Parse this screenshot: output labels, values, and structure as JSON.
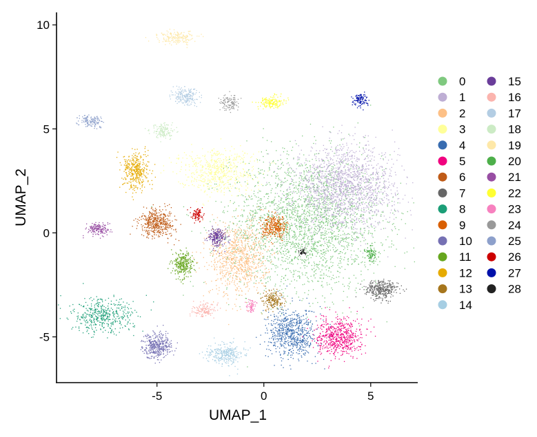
{
  "chart_data": {
    "type": "scatter",
    "title": "",
    "xlabel": "UMAP_1",
    "ylabel": "UMAP_2",
    "xlim": [
      -9.7,
      7.2
    ],
    "ylim": [
      -7.2,
      10.6
    ],
    "xticks": [
      -5,
      0,
      5
    ],
    "xtick_labels": [
      "-5",
      "0",
      "5"
    ],
    "yticks": [
      -5,
      0,
      5,
      10
    ],
    "ytick_labels": [
      "-5",
      "0",
      "5",
      "10"
    ],
    "grid": false,
    "legend_position": "right",
    "series": [
      {
        "name": "0",
        "color": "#7fc97f",
        "cx": 2.0,
        "cy": 0.5,
        "sx": 2.4,
        "sy": 2.2,
        "n": 2600
      },
      {
        "name": "1",
        "color": "#beaed4",
        "cx": 3.8,
        "cy": 2.2,
        "sx": 1.6,
        "sy": 1.3,
        "n": 1700
      },
      {
        "name": "2",
        "color": "#fdc086",
        "cx": -1.2,
        "cy": -1.2,
        "sx": 0.9,
        "sy": 1.2,
        "n": 900
      },
      {
        "name": "3",
        "color": "#ffff99",
        "cx": -2.2,
        "cy": 3.0,
        "sx": 1.2,
        "sy": 0.7,
        "n": 600
      },
      {
        "name": "4",
        "color": "#386cb0",
        "cx": 1.3,
        "cy": -4.8,
        "sx": 0.75,
        "sy": 0.8,
        "n": 700
      },
      {
        "name": "5",
        "color": "#f0027f",
        "cx": 3.5,
        "cy": -5.0,
        "sx": 0.7,
        "sy": 0.6,
        "n": 600
      },
      {
        "name": "6",
        "color": "#bf5b17",
        "cx": -5.0,
        "cy": 0.5,
        "sx": 0.55,
        "sy": 0.45,
        "n": 450
      },
      {
        "name": "7",
        "color": "#666666",
        "cx": 5.5,
        "cy": -2.7,
        "sx": 0.5,
        "sy": 0.3,
        "n": 350
      },
      {
        "name": "8",
        "color": "#1b9e77",
        "cx": -7.6,
        "cy": -4.0,
        "sx": 1.0,
        "sy": 0.55,
        "n": 450
      },
      {
        "name": "9",
        "color": "#d95f02",
        "cx": 0.5,
        "cy": 0.3,
        "sx": 0.4,
        "sy": 0.35,
        "n": 300
      },
      {
        "name": "10",
        "color": "#7570b3",
        "cx": -5.0,
        "cy": -5.4,
        "sx": 0.45,
        "sy": 0.4,
        "n": 380
      },
      {
        "name": "11",
        "color": "#66a61e",
        "cx": -3.8,
        "cy": -1.5,
        "sx": 0.3,
        "sy": 0.4,
        "n": 280
      },
      {
        "name": "12",
        "color": "#e6ab02",
        "cx": -6.0,
        "cy": 3.0,
        "sx": 0.4,
        "sy": 0.6,
        "n": 380
      },
      {
        "name": "13",
        "color": "#a6761d",
        "cx": 0.4,
        "cy": -3.2,
        "sx": 0.3,
        "sy": 0.3,
        "n": 180
      },
      {
        "name": "14",
        "color": "#a6cee3",
        "cx": -1.8,
        "cy": -5.8,
        "sx": 0.55,
        "sy": 0.35,
        "n": 280
      },
      {
        "name": "15",
        "color": "#6a3d9a",
        "cx": -2.2,
        "cy": -0.2,
        "sx": 0.3,
        "sy": 0.3,
        "n": 200
      },
      {
        "name": "16",
        "color": "#fbb4ae",
        "cx": -2.8,
        "cy": -3.7,
        "sx": 0.35,
        "sy": 0.2,
        "n": 130
      },
      {
        "name": "17",
        "color": "#b3cde3",
        "cx": -3.7,
        "cy": 6.6,
        "sx": 0.4,
        "sy": 0.3,
        "n": 200
      },
      {
        "name": "18",
        "color": "#ccebc5",
        "cx": -4.7,
        "cy": 4.9,
        "sx": 0.4,
        "sy": 0.25,
        "n": 140
      },
      {
        "name": "19",
        "color": "#fee8a8",
        "cx": -4.1,
        "cy": 9.4,
        "sx": 0.55,
        "sy": 0.2,
        "n": 180
      },
      {
        "name": "20",
        "color": "#4daf4a",
        "cx": 5.0,
        "cy": -1.0,
        "sx": 0.18,
        "sy": 0.25,
        "n": 90
      },
      {
        "name": "21",
        "color": "#984ea3",
        "cx": -7.8,
        "cy": 0.2,
        "sx": 0.35,
        "sy": 0.2,
        "n": 160
      },
      {
        "name": "22",
        "color": "#ffff33",
        "cx": 0.3,
        "cy": 6.3,
        "sx": 0.4,
        "sy": 0.2,
        "n": 150
      },
      {
        "name": "23",
        "color": "#f781bf",
        "cx": -0.6,
        "cy": -3.5,
        "sx": 0.15,
        "sy": 0.2,
        "n": 70
      },
      {
        "name": "24",
        "color": "#999999",
        "cx": -1.6,
        "cy": 6.3,
        "sx": 0.3,
        "sy": 0.25,
        "n": 110
      },
      {
        "name": "25",
        "color": "#8da0cb",
        "cx": -8.1,
        "cy": 5.4,
        "sx": 0.35,
        "sy": 0.2,
        "n": 130
      },
      {
        "name": "26",
        "color": "#cc0000",
        "cx": -3.1,
        "cy": 0.9,
        "sx": 0.18,
        "sy": 0.22,
        "n": 90
      },
      {
        "name": "27",
        "color": "#0011aa",
        "cx": 4.5,
        "cy": 6.4,
        "sx": 0.22,
        "sy": 0.2,
        "n": 110
      },
      {
        "name": "28",
        "color": "#222222",
        "cx": 1.8,
        "cy": -0.9,
        "sx": 0.12,
        "sy": 0.12,
        "n": 40
      }
    ]
  }
}
